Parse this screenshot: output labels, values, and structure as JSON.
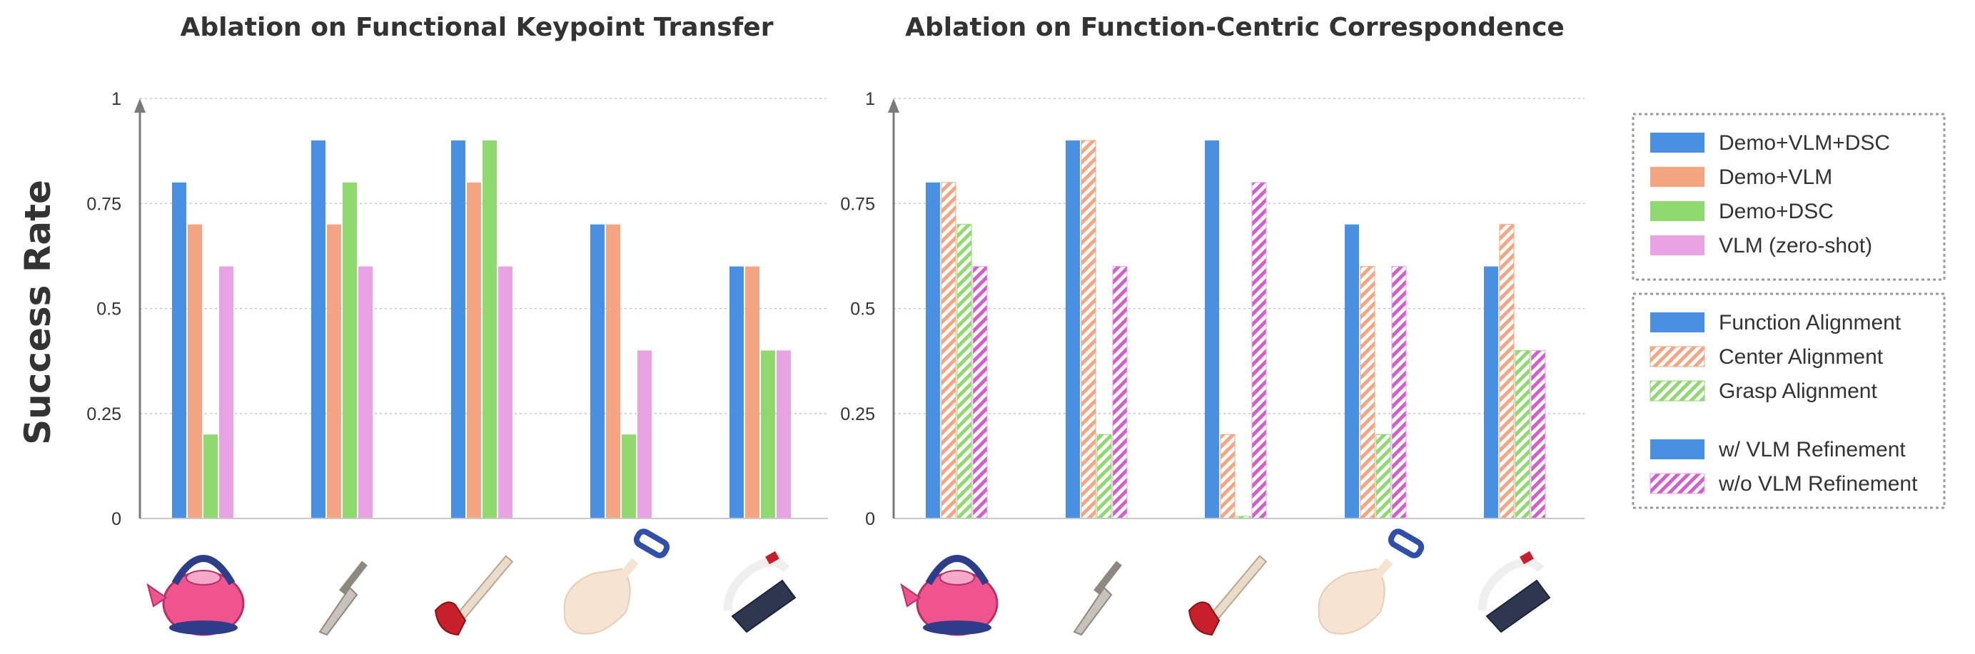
{
  "figure": {
    "ylabel": "Success Rate",
    "categories": [
      "kettle",
      "knife",
      "hammer",
      "shovel",
      "brush"
    ],
    "object_icons": [
      "kettle-icon",
      "knife-icon",
      "hammer-icon",
      "shovel-icon",
      "brush-icon"
    ],
    "colors": {
      "blue": "#4A90E2",
      "orange": "#F4A582",
      "green": "#8FD970",
      "pink": "#E9A3E3",
      "grid": "#C8C8C8",
      "axis": "#7A7A7A",
      "legend_border": "#9A9A9A",
      "text": "#333333"
    },
    "legend_groups": [
      [
        {
          "label": "Demo+VLM+DSC",
          "color": "#4A90E2",
          "pattern": "solid"
        },
        {
          "label": "Demo+VLM",
          "color": "#F4A582",
          "pattern": "solid"
        },
        {
          "label": "Demo+DSC",
          "color": "#8FD970",
          "pattern": "solid"
        },
        {
          "label": "VLM (zero-shot)",
          "color": "#E9A3E3",
          "pattern": "solid"
        }
      ],
      [
        {
          "label": "Function Alignment",
          "color": "#4A90E2",
          "pattern": "solid"
        },
        {
          "label": "Center Alignment",
          "color": "#F4A582",
          "pattern": "hatch"
        },
        {
          "label": "Grasp Alignment",
          "color": "#8FD970",
          "pattern": "hatch"
        },
        {
          "label": "w/ VLM Refinement",
          "color": "#4A90E2",
          "pattern": "solid",
          "gap_before": true
        },
        {
          "label": "w/o VLM Refinement",
          "color": "#E9A3E3",
          "pattern": "hatch"
        }
      ]
    ]
  },
  "chart_data": [
    {
      "type": "bar",
      "title": "Ablation on Functional Keypoint Transfer",
      "ylabel": "Success Rate",
      "ylim": [
        0,
        1
      ],
      "yticks": [
        "0",
        "0.25",
        "0.5",
        "0.75",
        "1"
      ],
      "grid": true,
      "categories": [
        "kettle",
        "knife",
        "hammer",
        "shovel",
        "brush"
      ],
      "series": [
        {
          "name": "Demo+VLM+DSC",
          "color": "#4A90E2",
          "pattern": "solid",
          "values": [
            0.8,
            0.9,
            0.9,
            0.7,
            0.6
          ]
        },
        {
          "name": "Demo+VLM",
          "color": "#F4A582",
          "pattern": "solid",
          "values": [
            0.7,
            0.7,
            0.8,
            0.7,
            0.6
          ]
        },
        {
          "name": "Demo+DSC",
          "color": "#8FD970",
          "pattern": "solid",
          "values": [
            0.2,
            0.8,
            0.9,
            0.2,
            0.4
          ]
        },
        {
          "name": "VLM (zero-shot)",
          "color": "#E9A3E3",
          "pattern": "solid",
          "values": [
            0.6,
            0.6,
            0.6,
            0.4,
            0.4
          ]
        }
      ]
    },
    {
      "type": "bar",
      "title": "Ablation on Function-Centric Correspondence",
      "ylim": [
        0,
        1
      ],
      "yticks": [
        "0",
        "0.25",
        "0.5",
        "0.75",
        "1"
      ],
      "grid": true,
      "categories": [
        "kettle",
        "knife",
        "hammer",
        "shovel",
        "brush"
      ],
      "series": [
        {
          "name": "Function Alignment",
          "color": "#4A90E2",
          "pattern": "solid",
          "values": [
            0.8,
            0.9,
            0.9,
            0.7,
            0.6
          ]
        },
        {
          "name": "Center Alignment",
          "color": "#F4A582",
          "pattern": "hatch",
          "values": [
            0.8,
            0.9,
            0.2,
            0.6,
            0.7
          ]
        },
        {
          "name": "Grasp Alignment",
          "color": "#8FD970",
          "pattern": "hatch",
          "values": [
            0.7,
            0.2,
            0.0,
            0.2,
            0.4
          ]
        },
        {
          "name": "w/o VLM Refinement",
          "color": "#E9A3E3",
          "pattern": "hatch",
          "values": [
            0.6,
            0.6,
            0.8,
            0.6,
            0.4
          ]
        }
      ]
    }
  ]
}
